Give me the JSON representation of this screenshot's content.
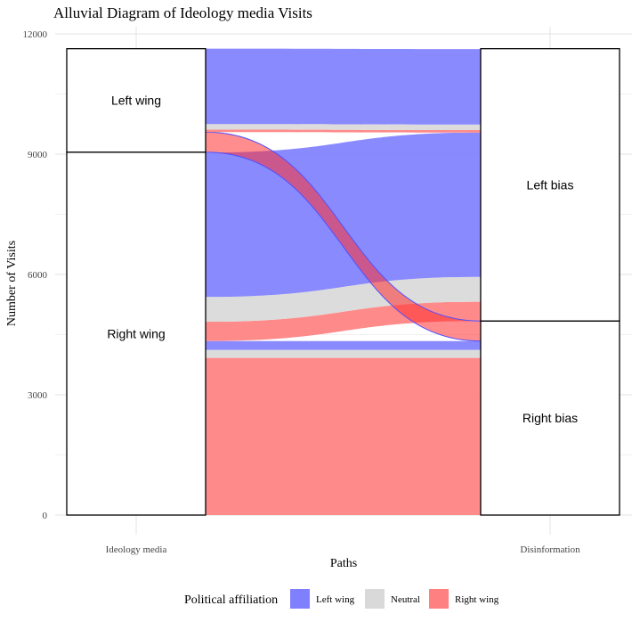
{
  "chart_data": {
    "type": "alluvial",
    "title": "Alluvial Diagram of Ideology media Visits",
    "xlabel": "Paths",
    "ylabel": "Number of Visits",
    "ylim": [
      0,
      12000
    ],
    "y_ticks": [
      "0",
      "3000",
      "6000",
      "9000",
      "12000"
    ],
    "axes": [
      "Ideology media",
      "Disinformation"
    ],
    "strata": {
      "Ideology media": [
        {
          "label": "Right wing",
          "value": 9050
        },
        {
          "label": "Left wing",
          "value": 2580
        }
      ],
      "Disinformation": [
        {
          "label": "Right bias",
          "value": 4840
        },
        {
          "label": "Left bias",
          "value": 6790
        }
      ]
    },
    "legend": {
      "title": "Political affiliation",
      "position": "bottom",
      "entries": [
        {
          "label": "Left wing",
          "color": "#8080ff"
        },
        {
          "label": "Neutral",
          "color": "#d9d9d9"
        },
        {
          "label": "Right wing",
          "color": "#ff8080"
        }
      ]
    },
    "flows": [
      {
        "from": "Right wing",
        "to": "Right bias",
        "affiliation": "Right wing",
        "value": 3920,
        "y0_start": 0,
        "y1_start": 0
      },
      {
        "from": "Right wing",
        "to": "Right bias",
        "affiliation": "Neutral",
        "value": 200,
        "y0_start": 3920,
        "y1_start": 3920
      },
      {
        "from": "Right wing",
        "to": "Right bias",
        "affiliation": "Left wing",
        "value": 220,
        "y0_start": 4120,
        "y1_start": 4120
      },
      {
        "from": "Right wing",
        "to": "Left bias",
        "affiliation": "Right wing",
        "value": 480,
        "y0_start": 4340,
        "y1_start": 4840
      },
      {
        "from": "Right wing",
        "to": "Left bias",
        "affiliation": "Neutral",
        "value": 620,
        "y0_start": 4820,
        "y1_start": 5320
      },
      {
        "from": "Right wing",
        "to": "Left bias",
        "affiliation": "Left wing",
        "value": 3600,
        "y0_start": 5440,
        "y1_start": 5940
      },
      {
        "from": "Left wing",
        "to": "Right bias",
        "affiliation": "Right wing",
        "value": 500,
        "y0_start": 9050,
        "y1_start": 4340
      },
      {
        "from": "Left wing",
        "to": "Left bias",
        "affiliation": "Right wing",
        "value": 60,
        "y0_start": 9550,
        "y1_start": 9540
      },
      {
        "from": "Left wing",
        "to": "Left bias",
        "affiliation": "Neutral",
        "value": 140,
        "y0_start": 9610,
        "y1_start": 9600
      },
      {
        "from": "Left wing",
        "to": "Left bias",
        "affiliation": "Left wing",
        "value": 1880,
        "y0_start": 9750,
        "y1_start": 9740
      }
    ]
  }
}
